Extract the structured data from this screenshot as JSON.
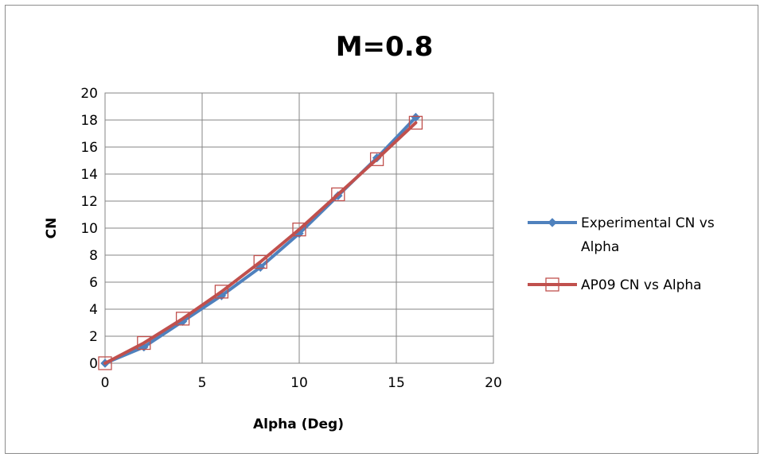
{
  "chart_data": {
    "type": "line",
    "title": "M=0.8",
    "xlabel": "Alpha (Deg)",
    "ylabel": "CN",
    "xlim": [
      0,
      20
    ],
    "ylim": [
      0,
      20
    ],
    "xticks": [
      0,
      5,
      10,
      15,
      20
    ],
    "yticks": [
      0,
      2,
      4,
      6,
      8,
      10,
      12,
      14,
      16,
      18,
      20
    ],
    "grid": true,
    "legend_position": "right",
    "series": [
      {
        "name": "Experimental CN vs Alpha",
        "legend_lines": [
          "Experimental CN vs",
          "Alpha"
        ],
        "color": "#4f81bd",
        "marker": "diamond",
        "x": [
          0,
          2,
          4,
          6,
          8,
          10,
          12,
          14,
          16
        ],
        "y": [
          0.0,
          1.2,
          3.1,
          5.0,
          7.1,
          9.6,
          12.4,
          15.2,
          18.2
        ]
      },
      {
        "name": "AP09 CN vs Alpha",
        "legend_lines": [
          "AP09 CN vs Alpha"
        ],
        "color": "#c0504d",
        "marker": "square",
        "x": [
          0,
          2,
          4,
          6,
          8,
          10,
          12,
          14,
          16
        ],
        "y": [
          0.0,
          1.5,
          3.3,
          5.3,
          7.5,
          9.9,
          12.5,
          15.1,
          17.8
        ]
      }
    ]
  }
}
